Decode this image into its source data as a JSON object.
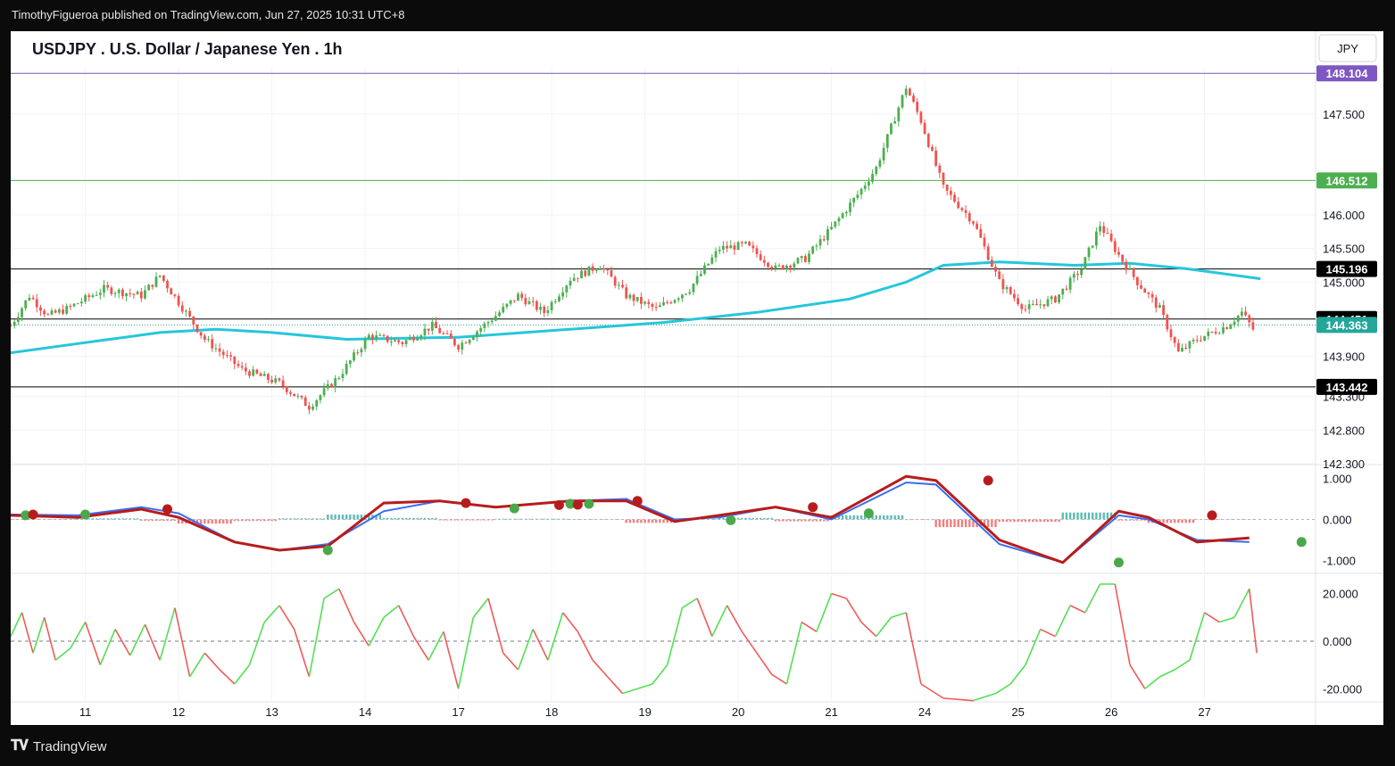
{
  "publisher_line": "TimothyFigueroa published on TradingView.com, Jun 27, 2025 10:31 UTC+8",
  "title": "USDJPY . U.S. Dollar / Japanese Yen . 1h",
  "currency_button": "JPY",
  "footer_brand": "TradingView",
  "colors": {
    "up": "#4caf50",
    "down": "#ef5350",
    "ma": "#26c6da",
    "macd_fast": "#3a6cf0",
    "macd_signal_up": "#4aa84a",
    "macd_signal_down": "#b71c1c",
    "osc_up": "#52e052",
    "osc_down": "#f05a5a",
    "line_purple": "#7e57c2",
    "line_green": "#4caf50"
  },
  "chart_data": [
    {
      "type": "candlestick",
      "title": "USDJPY . U.S. Dollar / Japanese Yen . 1h",
      "x_tick_labels": [
        "11",
        "12",
        "13",
        "14",
        "17",
        "18",
        "19",
        "20",
        "21",
        "24",
        "25",
        "26",
        "27"
      ],
      "y_ticks": [
        147.5,
        146.0,
        145.5,
        145.0,
        143.9,
        143.3,
        142.8,
        142.3
      ],
      "y_tick_labels": [
        "147.500",
        "146.000",
        "145.500",
        "145.000",
        "143.900",
        "143.300",
        "142.800",
        "142.300"
      ],
      "ylim": [
        142.3,
        148.2
      ],
      "key_points_close": [
        {
          "x": 0,
          "y": 144.35
        },
        {
          "x": 5,
          "y": 144.8
        },
        {
          "x": 10,
          "y": 144.5
        },
        {
          "x": 15,
          "y": 144.6
        },
        {
          "x": 25,
          "y": 144.9
        },
        {
          "x": 35,
          "y": 144.8
        },
        {
          "x": 40,
          "y": 145.1
        },
        {
          "x": 45,
          "y": 144.7
        },
        {
          "x": 52,
          "y": 144.15
        },
        {
          "x": 62,
          "y": 143.7
        },
        {
          "x": 72,
          "y": 143.5
        },
        {
          "x": 80,
          "y": 143.15
        },
        {
          "x": 88,
          "y": 143.6
        },
        {
          "x": 96,
          "y": 144.2
        },
        {
          "x": 105,
          "y": 144.1
        },
        {
          "x": 113,
          "y": 144.35
        },
        {
          "x": 120,
          "y": 144.05
        },
        {
          "x": 130,
          "y": 144.5
        },
        {
          "x": 136,
          "y": 144.8
        },
        {
          "x": 143,
          "y": 144.55
        },
        {
          "x": 150,
          "y": 145.05
        },
        {
          "x": 158,
          "y": 145.25
        },
        {
          "x": 165,
          "y": 144.8
        },
        {
          "x": 173,
          "y": 144.6
        },
        {
          "x": 182,
          "y": 144.9
        },
        {
          "x": 190,
          "y": 145.5
        },
        {
          "x": 197,
          "y": 145.55
        },
        {
          "x": 205,
          "y": 145.2
        },
        {
          "x": 213,
          "y": 145.35
        },
        {
          "x": 220,
          "y": 145.8
        },
        {
          "x": 227,
          "y": 146.3
        },
        {
          "x": 232,
          "y": 146.7
        },
        {
          "x": 240,
          "y": 147.9
        },
        {
          "x": 244,
          "y": 147.4
        },
        {
          "x": 250,
          "y": 146.4
        },
        {
          "x": 258,
          "y": 145.9
        },
        {
          "x": 265,
          "y": 145.0
        },
        {
          "x": 272,
          "y": 144.6
        },
        {
          "x": 280,
          "y": 144.75
        },
        {
          "x": 287,
          "y": 145.2
        },
        {
          "x": 292,
          "y": 145.85
        },
        {
          "x": 297,
          "y": 145.4
        },
        {
          "x": 302,
          "y": 145.0
        },
        {
          "x": 308,
          "y": 144.6
        },
        {
          "x": 313,
          "y": 143.95
        },
        {
          "x": 318,
          "y": 144.15
        },
        {
          "x": 326,
          "y": 144.35
        },
        {
          "x": 330,
          "y": 144.55
        },
        {
          "x": 333,
          "y": 144.3
        }
      ],
      "moving_average": [
        {
          "x": 0,
          "y": 143.95
        },
        {
          "x": 20,
          "y": 144.1
        },
        {
          "x": 40,
          "y": 144.25
        },
        {
          "x": 55,
          "y": 144.3
        },
        {
          "x": 70,
          "y": 144.25
        },
        {
          "x": 90,
          "y": 144.15
        },
        {
          "x": 120,
          "y": 144.18
        },
        {
          "x": 150,
          "y": 144.3
        },
        {
          "x": 175,
          "y": 144.4
        },
        {
          "x": 200,
          "y": 144.55
        },
        {
          "x": 225,
          "y": 144.75
        },
        {
          "x": 240,
          "y": 145.0
        },
        {
          "x": 250,
          "y": 145.25
        },
        {
          "x": 265,
          "y": 145.3
        },
        {
          "x": 285,
          "y": 145.25
        },
        {
          "x": 300,
          "y": 145.28
        },
        {
          "x": 315,
          "y": 145.2
        },
        {
          "x": 335,
          "y": 145.05
        }
      ],
      "horizontal_levels": [
        {
          "value": 148.104,
          "label": "148.104",
          "color": "#7e57c2"
        },
        {
          "value": 146.512,
          "label": "146.512",
          "color": "#4caf50"
        },
        {
          "value": 145.196,
          "label": "145.196",
          "color": "#000000"
        },
        {
          "value": 144.451,
          "label": "144.451",
          "color": "#000000"
        },
        {
          "value": 143.442,
          "label": "143.442",
          "color": "#000000"
        }
      ],
      "last_price": {
        "value": 144.363,
        "label": "144.363",
        "color": "#26a69a"
      }
    },
    {
      "type": "line",
      "name": "MACD-style oscillator",
      "y_ticks": [
        1.0,
        0.0,
        -1.0
      ],
      "y_tick_labels": [
        "1.000",
        "0.000",
        "-1.000"
      ],
      "ylim": [
        -1.25,
        1.25
      ],
      "fast_line": [
        {
          "x": 0,
          "y": 0.12
        },
        {
          "x": 18,
          "y": 0.1
        },
        {
          "x": 35,
          "y": 0.3
        },
        {
          "x": 45,
          "y": 0.15
        },
        {
          "x": 60,
          "y": -0.55
        },
        {
          "x": 72,
          "y": -0.75
        },
        {
          "x": 85,
          "y": -0.6
        },
        {
          "x": 100,
          "y": 0.2
        },
        {
          "x": 115,
          "y": 0.45
        },
        {
          "x": 130,
          "y": 0.3
        },
        {
          "x": 150,
          "y": 0.45
        },
        {
          "x": 165,
          "y": 0.5
        },
        {
          "x": 178,
          "y": 0.0
        },
        {
          "x": 190,
          "y": 0.05
        },
        {
          "x": 205,
          "y": 0.3
        },
        {
          "x": 220,
          "y": 0.0
        },
        {
          "x": 240,
          "y": 0.9
        },
        {
          "x": 248,
          "y": 0.85
        },
        {
          "x": 265,
          "y": -0.6
        },
        {
          "x": 282,
          "y": -1.05
        },
        {
          "x": 297,
          "y": 0.1
        },
        {
          "x": 305,
          "y": 0.0
        },
        {
          "x": 318,
          "y": -0.5
        },
        {
          "x": 332,
          "y": -0.55
        }
      ],
      "signal_line": [
        {
          "x": 0,
          "y": 0.1
        },
        {
          "x": 18,
          "y": 0.05
        },
        {
          "x": 35,
          "y": 0.25
        },
        {
          "x": 45,
          "y": 0.05
        },
        {
          "x": 60,
          "y": -0.55
        },
        {
          "x": 72,
          "y": -0.75
        },
        {
          "x": 85,
          "y": -0.65
        },
        {
          "x": 100,
          "y": 0.4
        },
        {
          "x": 115,
          "y": 0.45
        },
        {
          "x": 130,
          "y": 0.3
        },
        {
          "x": 150,
          "y": 0.45
        },
        {
          "x": 165,
          "y": 0.45
        },
        {
          "x": 178,
          "y": -0.05
        },
        {
          "x": 190,
          "y": 0.1
        },
        {
          "x": 205,
          "y": 0.3
        },
        {
          "x": 220,
          "y": 0.05
        },
        {
          "x": 240,
          "y": 1.05
        },
        {
          "x": 248,
          "y": 0.95
        },
        {
          "x": 265,
          "y": -0.5
        },
        {
          "x": 282,
          "y": -1.05
        },
        {
          "x": 297,
          "y": 0.2
        },
        {
          "x": 305,
          "y": 0.05
        },
        {
          "x": 318,
          "y": -0.55
        },
        {
          "x": 332,
          "y": -0.45
        }
      ],
      "cross_markers": [
        {
          "x": 4,
          "y": 0.1,
          "dir": "up"
        },
        {
          "x": 6,
          "y": 0.12,
          "dir": "down"
        },
        {
          "x": 20,
          "y": 0.12,
          "dir": "up"
        },
        {
          "x": 42,
          "y": 0.25,
          "dir": "down"
        },
        {
          "x": 85,
          "y": -0.75,
          "dir": "up"
        },
        {
          "x": 122,
          "y": 0.4,
          "dir": "down"
        },
        {
          "x": 135,
          "y": 0.27,
          "dir": "up"
        },
        {
          "x": 147,
          "y": 0.35,
          "dir": "down"
        },
        {
          "x": 150,
          "y": 0.38,
          "dir": "up"
        },
        {
          "x": 152,
          "y": 0.36,
          "dir": "down"
        },
        {
          "x": 155,
          "y": 0.38,
          "dir": "up"
        },
        {
          "x": 168,
          "y": 0.45,
          "dir": "down"
        },
        {
          "x": 193,
          "y": -0.02,
          "dir": "up"
        },
        {
          "x": 215,
          "y": 0.3,
          "dir": "down"
        },
        {
          "x": 230,
          "y": 0.15,
          "dir": "up"
        },
        {
          "x": 262,
          "y": 0.95,
          "dir": "down"
        },
        {
          "x": 297,
          "y": -1.05,
          "dir": "up"
        },
        {
          "x": 322,
          "y": 0.1,
          "dir": "down"
        },
        {
          "x": 346,
          "y": -0.55,
          "dir": "up"
        }
      ]
    },
    {
      "type": "line",
      "name": "momentum oscillator",
      "y_ticks": [
        20.0,
        0.0,
        -20.0
      ],
      "y_tick_labels": [
        "20.000",
        "0.000",
        "-20.000"
      ],
      "ylim": [
        -27,
        27
      ],
      "values": [
        {
          "x": 0,
          "y": 2
        },
        {
          "x": 3,
          "y": 12
        },
        {
          "x": 6,
          "y": -5
        },
        {
          "x": 9,
          "y": 10
        },
        {
          "x": 12,
          "y": -8
        },
        {
          "x": 16,
          "y": -3
        },
        {
          "x": 20,
          "y": 8
        },
        {
          "x": 24,
          "y": -10
        },
        {
          "x": 28,
          "y": 5
        },
        {
          "x": 32,
          "y": -6
        },
        {
          "x": 36,
          "y": 7
        },
        {
          "x": 40,
          "y": -8
        },
        {
          "x": 44,
          "y": 14
        },
        {
          "x": 48,
          "y": -15
        },
        {
          "x": 52,
          "y": -5
        },
        {
          "x": 56,
          "y": -12
        },
        {
          "x": 60,
          "y": -18
        },
        {
          "x": 64,
          "y": -10
        },
        {
          "x": 68,
          "y": 8
        },
        {
          "x": 72,
          "y": 15
        },
        {
          "x": 76,
          "y": 5
        },
        {
          "x": 80,
          "y": -15
        },
        {
          "x": 84,
          "y": 18
        },
        {
          "x": 88,
          "y": 22
        },
        {
          "x": 92,
          "y": 8
        },
        {
          "x": 96,
          "y": -2
        },
        {
          "x": 100,
          "y": 10
        },
        {
          "x": 104,
          "y": 15
        },
        {
          "x": 108,
          "y": 2
        },
        {
          "x": 112,
          "y": -8
        },
        {
          "x": 116,
          "y": 4
        },
        {
          "x": 120,
          "y": -20
        },
        {
          "x": 124,
          "y": 10
        },
        {
          "x": 128,
          "y": 18
        },
        {
          "x": 132,
          "y": -5
        },
        {
          "x": 136,
          "y": -12
        },
        {
          "x": 140,
          "y": 5
        },
        {
          "x": 144,
          "y": -8
        },
        {
          "x": 148,
          "y": 12
        },
        {
          "x": 152,
          "y": 4
        },
        {
          "x": 156,
          "y": -8
        },
        {
          "x": 160,
          "y": -15
        },
        {
          "x": 164,
          "y": -22
        },
        {
          "x": 168,
          "y": -20
        },
        {
          "x": 172,
          "y": -18
        },
        {
          "x": 176,
          "y": -10
        },
        {
          "x": 180,
          "y": 14
        },
        {
          "x": 184,
          "y": 18
        },
        {
          "x": 188,
          "y": 2
        },
        {
          "x": 192,
          "y": 15
        },
        {
          "x": 196,
          "y": 4
        },
        {
          "x": 200,
          "y": -5
        },
        {
          "x": 204,
          "y": -14
        },
        {
          "x": 208,
          "y": -18
        },
        {
          "x": 212,
          "y": 8
        },
        {
          "x": 216,
          "y": 4
        },
        {
          "x": 220,
          "y": 20
        },
        {
          "x": 224,
          "y": 18
        },
        {
          "x": 228,
          "y": 8
        },
        {
          "x": 232,
          "y": 2
        },
        {
          "x": 236,
          "y": 10
        },
        {
          "x": 240,
          "y": 12
        },
        {
          "x": 244,
          "y": -18
        },
        {
          "x": 250,
          "y": -24
        },
        {
          "x": 258,
          "y": -25
        },
        {
          "x": 264,
          "y": -22
        },
        {
          "x": 268,
          "y": -18
        },
        {
          "x": 272,
          "y": -10
        },
        {
          "x": 276,
          "y": 5
        },
        {
          "x": 280,
          "y": 2
        },
        {
          "x": 284,
          "y": 15
        },
        {
          "x": 288,
          "y": 12
        },
        {
          "x": 292,
          "y": 24
        },
        {
          "x": 296,
          "y": 24
        },
        {
          "x": 300,
          "y": -10
        },
        {
          "x": 304,
          "y": -20
        },
        {
          "x": 308,
          "y": -15
        },
        {
          "x": 312,
          "y": -12
        },
        {
          "x": 316,
          "y": -8
        },
        {
          "x": 320,
          "y": 12
        },
        {
          "x": 324,
          "y": 8
        },
        {
          "x": 328,
          "y": 10
        },
        {
          "x": 332,
          "y": 22
        },
        {
          "x": 334,
          "y": -5
        }
      ]
    }
  ]
}
